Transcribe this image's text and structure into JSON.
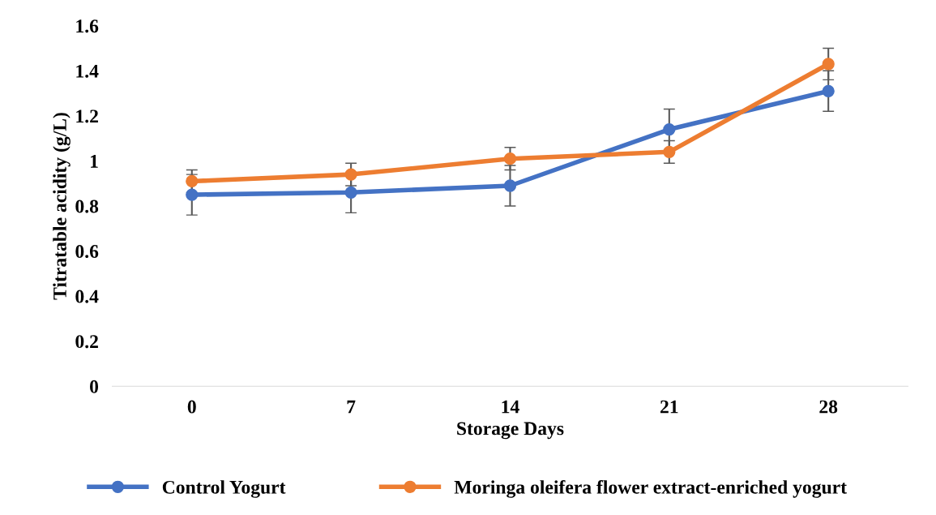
{
  "chart_data": {
    "type": "line",
    "xlabel": "Storage Days",
    "ylabel": "Titratable acidity (g/L)",
    "categories": [
      "0",
      "7",
      "14",
      "21",
      "28"
    ],
    "series": [
      {
        "name": "Control Yogurt",
        "color": "#4472c4",
        "values": [
          0.85,
          0.86,
          0.89,
          1.14,
          1.31
        ],
        "errors": [
          0.09,
          0.09,
          0.09,
          0.09,
          0.09
        ]
      },
      {
        "name": "Moringa oleifera flower extract-enriched yogurt",
        "color": "#ed7d31",
        "values": [
          0.91,
          0.94,
          1.01,
          1.04,
          1.43
        ],
        "errors": [
          0.05,
          0.05,
          0.05,
          0.05,
          0.07
        ]
      }
    ],
    "ylim": [
      0,
      1.6
    ],
    "yticks": [
      0,
      0.2,
      0.4,
      0.6,
      0.8,
      1,
      1.2,
      1.4,
      1.6
    ],
    "grid": false,
    "legend": "bottom",
    "marker": "circle",
    "line_style": "solid"
  }
}
